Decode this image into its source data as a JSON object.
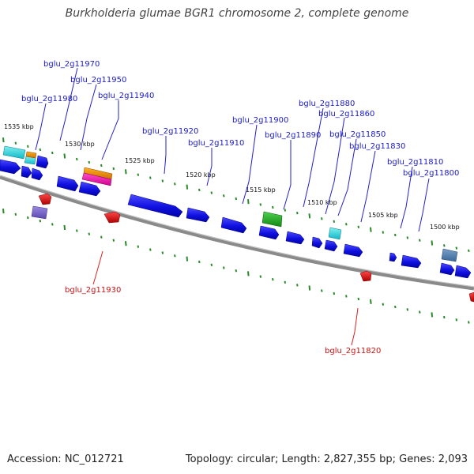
{
  "title": "Burkholderia glumae BGR1 chromosome 2, complete genome",
  "footer": {
    "accession": "Accession: NC_012721",
    "topology": "Topology: circular; Length: 2,827,355 bp; Genes: 2,093"
  },
  "colors": {
    "backbone": "#8a8a8a",
    "forward_label": "#1a1acc",
    "reverse_label": "#cc1111",
    "tick": "#2a8a2a"
  },
  "kbp_labels": [
    "1535 kbp",
    "1530 kbp",
    "1525 kbp",
    "1520 kbp",
    "1515 kbp",
    "1510 kbp",
    "1505 kbp",
    "1500 kbp"
  ],
  "gene_labels": {
    "forward": [
      "bglu_2g11970",
      "bglu_2g11950",
      "bglu_2g11980",
      "bglu_2g11940",
      "bglu_2g11920",
      "bglu_2g11910",
      "bglu_2g11900",
      "bglu_2g11890",
      "bglu_2g11880",
      "bglu_2g11860",
      "bglu_2g11850",
      "bglu_2g11830",
      "bglu_2g11810",
      "bglu_2g11800"
    ],
    "reverse": [
      "bglu_2g11930",
      "bglu_2g11820"
    ]
  }
}
